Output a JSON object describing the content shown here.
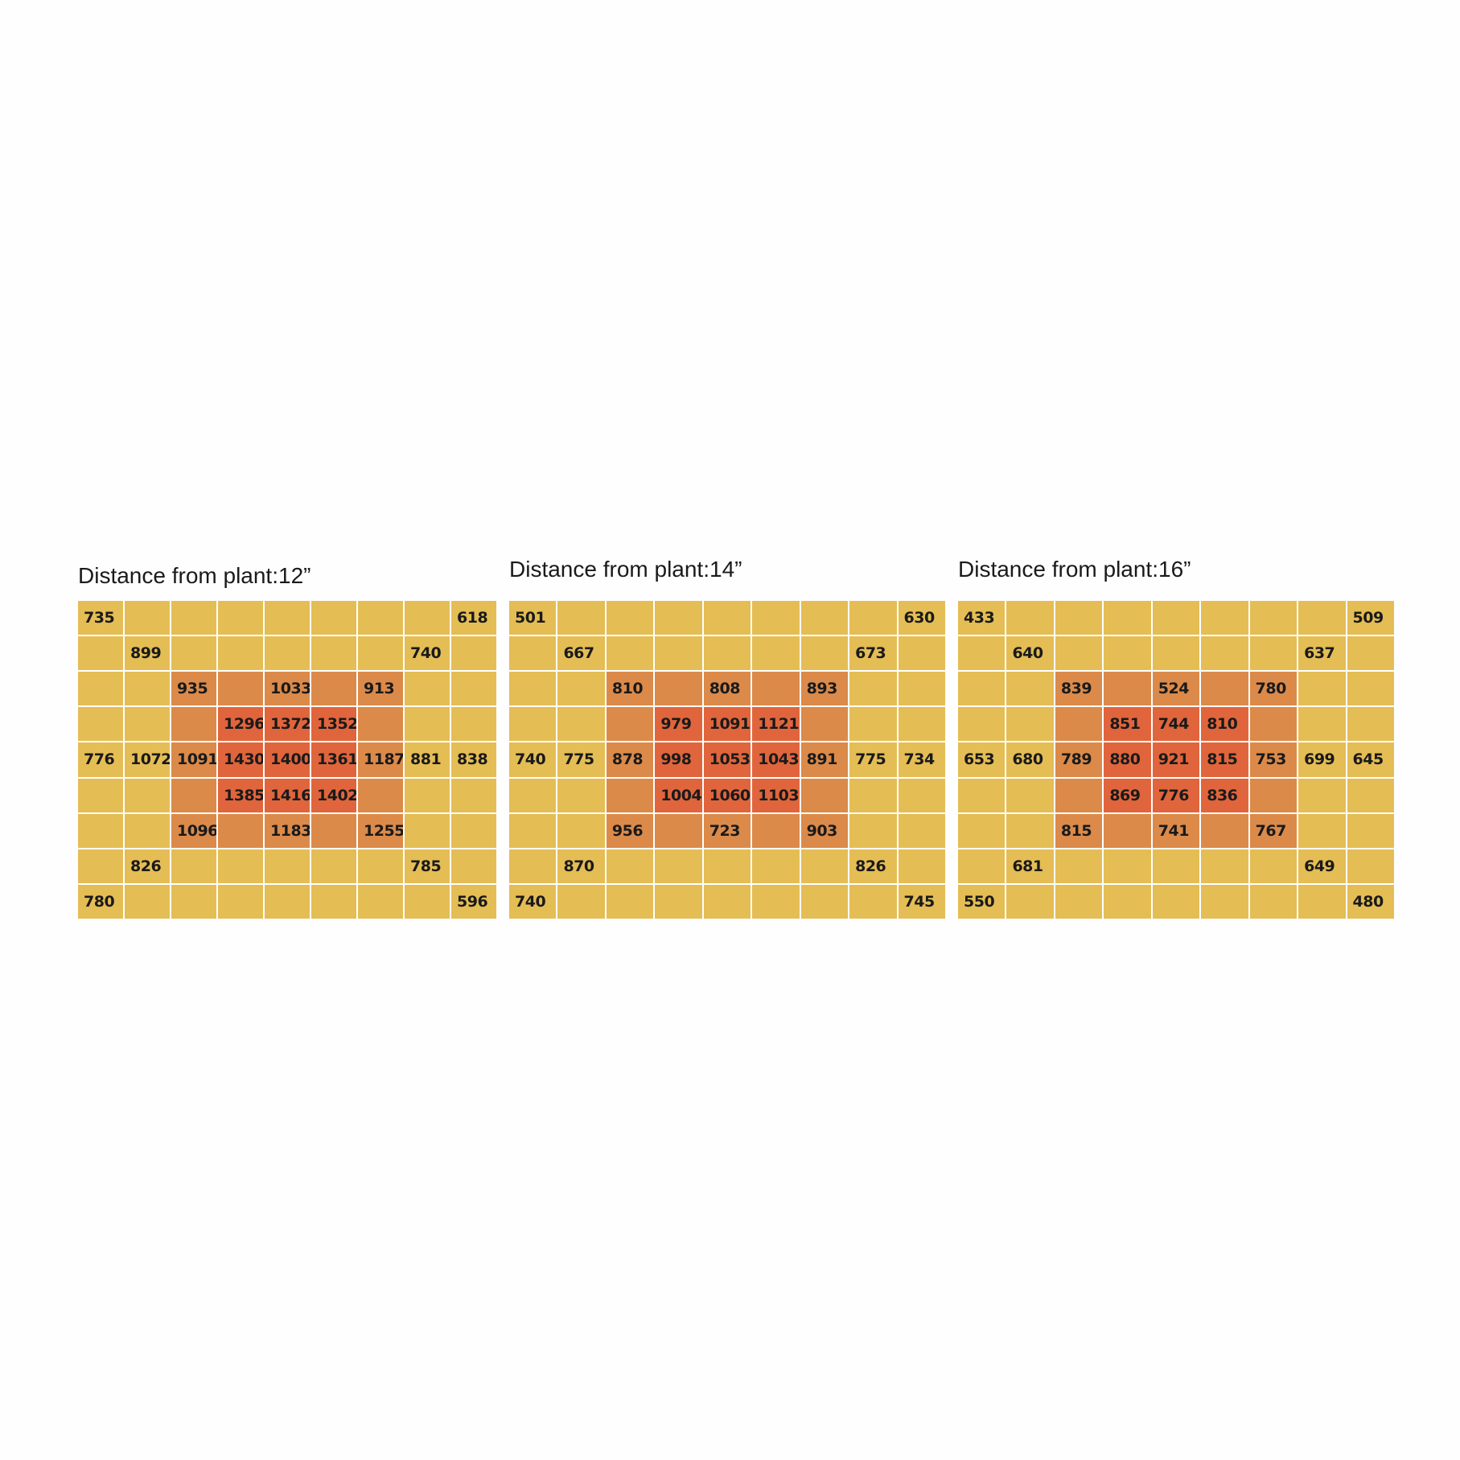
{
  "panels": [
    {
      "title": "Distance from plant:12”",
      "rows": [
        [
          735,
          null,
          null,
          null,
          null,
          null,
          null,
          null,
          618
        ],
        [
          null,
          899,
          null,
          null,
          null,
          null,
          null,
          740,
          null
        ],
        [
          null,
          null,
          935,
          null,
          1033,
          null,
          913,
          null,
          null
        ],
        [
          null,
          null,
          null,
          1296,
          1372,
          1352,
          null,
          null,
          null
        ],
        [
          776,
          1072,
          1091,
          1430,
          1400,
          1361,
          1187,
          881,
          838
        ],
        [
          null,
          null,
          null,
          1385,
          1416,
          1402,
          null,
          null,
          null
        ],
        [
          null,
          null,
          1096,
          null,
          1183,
          null,
          1255,
          null,
          null
        ],
        [
          null,
          826,
          null,
          null,
          null,
          null,
          null,
          785,
          null
        ],
        [
          780,
          null,
          null,
          null,
          null,
          null,
          null,
          null,
          596
        ]
      ]
    },
    {
      "title": "Distance from plant:14”",
      "rows": [
        [
          501,
          null,
          null,
          null,
          null,
          null,
          null,
          null,
          630
        ],
        [
          null,
          667,
          null,
          null,
          null,
          null,
          null,
          673,
          null
        ],
        [
          null,
          null,
          810,
          null,
          808,
          null,
          893,
          null,
          null
        ],
        [
          null,
          null,
          null,
          979,
          1091,
          1121,
          null,
          null,
          null
        ],
        [
          740,
          775,
          878,
          998,
          1053,
          1043,
          891,
          775,
          734
        ],
        [
          null,
          null,
          null,
          1004,
          1060,
          1103,
          null,
          null,
          null
        ],
        [
          null,
          null,
          956,
          null,
          723,
          null,
          903,
          null,
          null
        ],
        [
          null,
          870,
          null,
          null,
          null,
          null,
          null,
          826,
          null
        ],
        [
          740,
          null,
          null,
          null,
          null,
          null,
          null,
          null,
          745
        ]
      ]
    },
    {
      "title": "Distance from plant:16”",
      "rows": [
        [
          433,
          null,
          null,
          null,
          null,
          null,
          null,
          null,
          509
        ],
        [
          null,
          640,
          null,
          null,
          null,
          null,
          null,
          637,
          null
        ],
        [
          null,
          null,
          839,
          null,
          524,
          null,
          780,
          null,
          null
        ],
        [
          null,
          null,
          null,
          851,
          744,
          810,
          null,
          null,
          null
        ],
        [
          653,
          680,
          789,
          880,
          921,
          815,
          753,
          699,
          645
        ],
        [
          null,
          null,
          null,
          869,
          776,
          836,
          null,
          null,
          null
        ],
        [
          null,
          null,
          815,
          null,
          741,
          null,
          767,
          null,
          null
        ],
        [
          null,
          681,
          null,
          null,
          null,
          null,
          null,
          649,
          null
        ],
        [
          550,
          null,
          null,
          null,
          null,
          null,
          null,
          null,
          480
        ]
      ]
    }
  ]
}
